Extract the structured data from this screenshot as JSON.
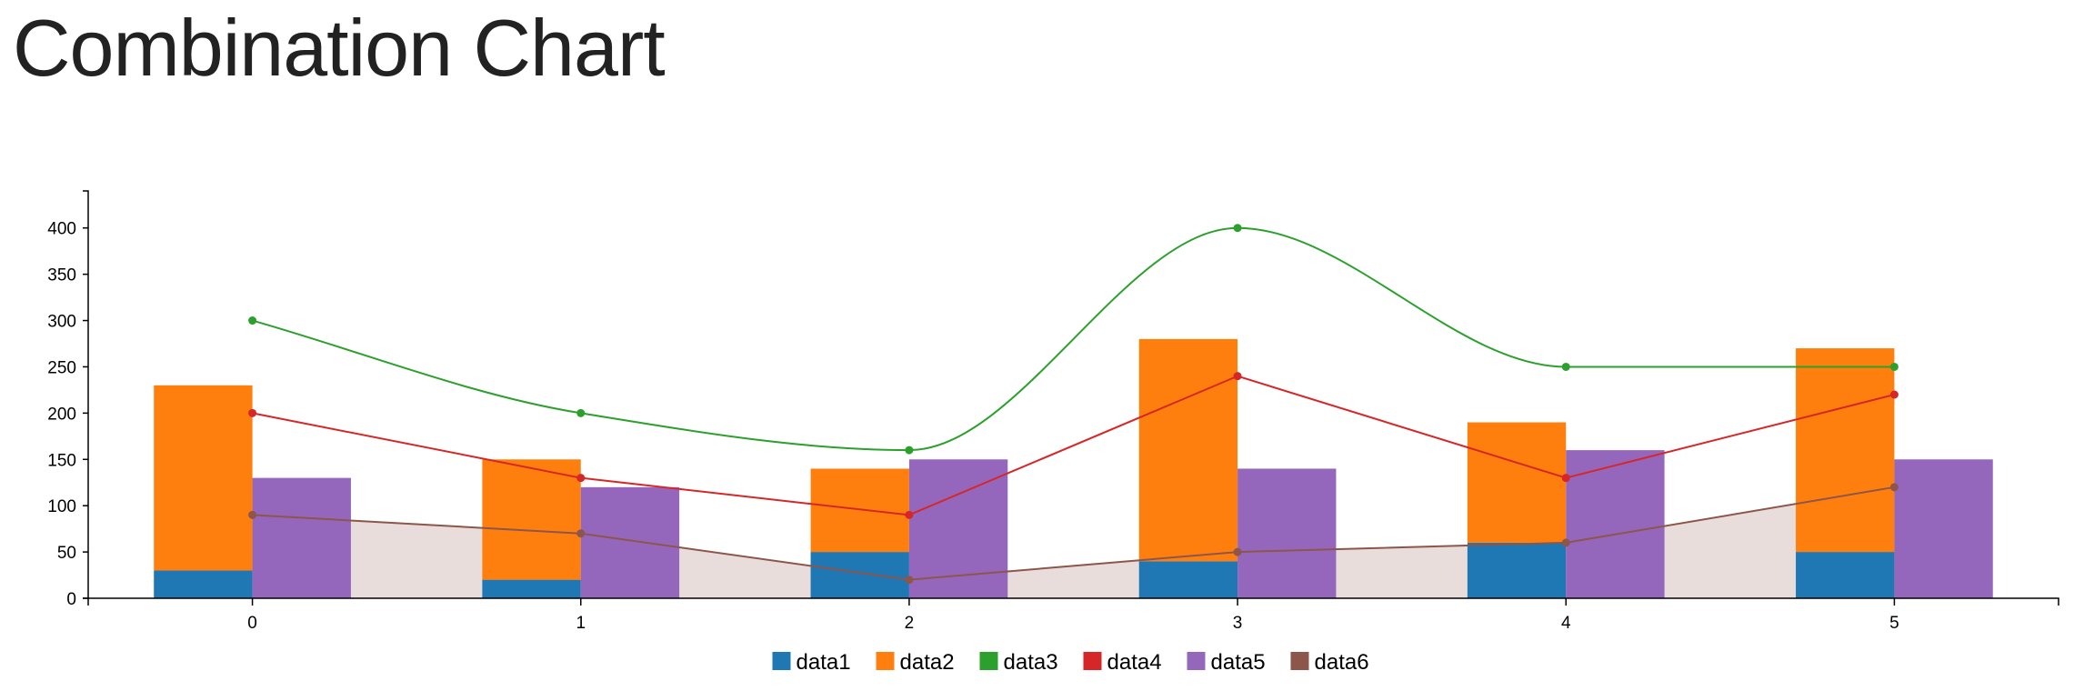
{
  "page": {
    "title": "Combination Chart"
  },
  "chart_data": {
    "type": "combination",
    "title": "Combination Chart",
    "x": [
      0,
      1,
      2,
      3,
      4,
      5
    ],
    "ylim": [
      0,
      440
    ],
    "y_ticks": [
      0,
      50,
      100,
      150,
      200,
      250,
      300,
      350,
      400
    ],
    "grid": false,
    "legend": "bottom",
    "series": [
      {
        "name": "data1",
        "render": "bar",
        "stack": "a",
        "color": "#1f77b4",
        "values": [
          30,
          20,
          50,
          40,
          60,
          50
        ]
      },
      {
        "name": "data2",
        "render": "bar",
        "stack": "a",
        "color": "#ff7f0e",
        "values": [
          200,
          130,
          90,
          240,
          130,
          220
        ]
      },
      {
        "name": "data3",
        "render": "spline",
        "color": "#2ca02c",
        "values": [
          300,
          200,
          160,
          400,
          250,
          250
        ]
      },
      {
        "name": "data4",
        "render": "line",
        "color": "#d62728",
        "values": [
          200,
          130,
          90,
          240,
          130,
          220
        ]
      },
      {
        "name": "data5",
        "render": "bar",
        "color": "#9467bd",
        "values": [
          130,
          120,
          150,
          140,
          160,
          150
        ]
      },
      {
        "name": "data6",
        "render": "area",
        "color": "#8c564b",
        "values": [
          90,
          70,
          20,
          50,
          60,
          120
        ]
      }
    ]
  }
}
